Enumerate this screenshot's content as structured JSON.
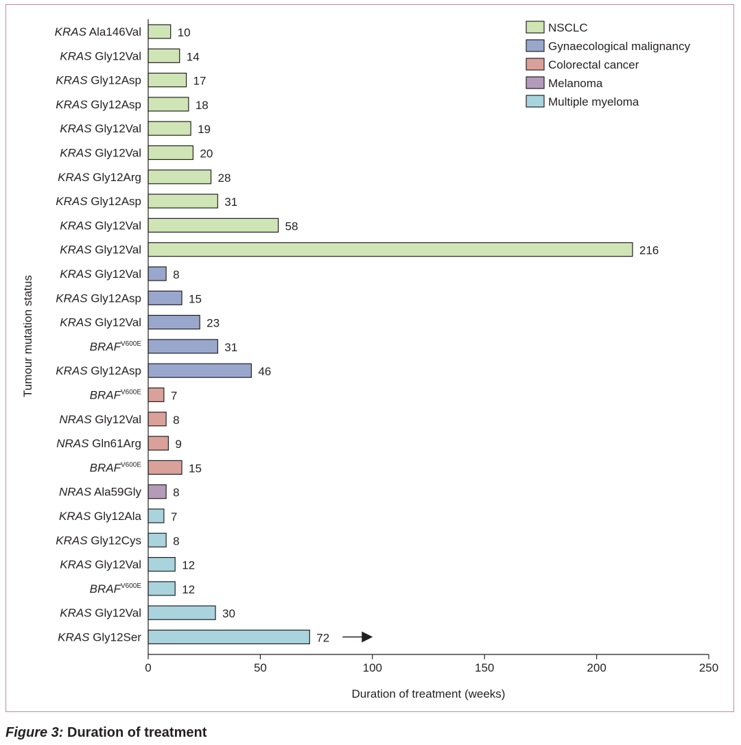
{
  "caption": {
    "figure_number": "Figure 3:",
    "title": "Duration of treatment"
  },
  "colors": {
    "NSCLC": "#cfe5b5",
    "Gynaecological malignancy": "#9aa7cc",
    "Colorectal cancer": "#d9a19a",
    "Melanoma": "#b49bb9",
    "Multiple myeloma": "#a9d3dd",
    "bar_stroke": "#231f20"
  },
  "chart_data": {
    "type": "bar",
    "orientation": "horizontal",
    "xlabel": "Duration of treatment (weeks)",
    "ylabel": "Tumour mutation status",
    "xlim": [
      0,
      250
    ],
    "xticks": [
      0,
      50,
      100,
      150,
      200,
      250
    ],
    "grid": false,
    "legend_position": "top-right",
    "legend": [
      "NSCLC",
      "Gynaecological malignancy",
      "Colorectal cancer",
      "Melanoma",
      "Multiple myeloma"
    ],
    "bars": [
      {
        "gene": "KRAS",
        "mutation": "Ala146Val",
        "value": 10,
        "group": "NSCLC"
      },
      {
        "gene": "KRAS",
        "mutation": "Gly12Val",
        "value": 14,
        "group": "NSCLC"
      },
      {
        "gene": "KRAS",
        "mutation": "Gly12Asp",
        "value": 17,
        "group": "NSCLC"
      },
      {
        "gene": "KRAS",
        "mutation": "Gly12Asp",
        "value": 18,
        "group": "NSCLC"
      },
      {
        "gene": "KRAS",
        "mutation": "Gly12Val",
        "value": 19,
        "group": "NSCLC"
      },
      {
        "gene": "KRAS",
        "mutation": "Gly12Val",
        "value": 20,
        "group": "NSCLC"
      },
      {
        "gene": "KRAS",
        "mutation": "Gly12Arg",
        "value": 28,
        "group": "NSCLC"
      },
      {
        "gene": "KRAS",
        "mutation": "Gly12Asp",
        "value": 31,
        "group": "NSCLC"
      },
      {
        "gene": "KRAS",
        "mutation": "Gly12Val",
        "value": 58,
        "group": "NSCLC"
      },
      {
        "gene": "KRAS",
        "mutation": "Gly12Val",
        "value": 216,
        "group": "NSCLC"
      },
      {
        "gene": "KRAS",
        "mutation": "Gly12Val",
        "value": 8,
        "group": "Gynaecological malignancy"
      },
      {
        "gene": "KRAS",
        "mutation": "Gly12Asp",
        "value": 15,
        "group": "Gynaecological malignancy"
      },
      {
        "gene": "KRAS",
        "mutation": "Gly12Val",
        "value": 23,
        "group": "Gynaecological malignancy"
      },
      {
        "gene": "BRAF",
        "mutation": "V600E",
        "value": 31,
        "group": "Gynaecological malignancy"
      },
      {
        "gene": "KRAS",
        "mutation": "Gly12Asp",
        "value": 46,
        "group": "Gynaecological malignancy"
      },
      {
        "gene": "BRAF",
        "mutation": "V600E",
        "value": 7,
        "group": "Colorectal cancer"
      },
      {
        "gene": "NRAS",
        "mutation": "Gly12Val",
        "value": 8,
        "group": "Colorectal cancer"
      },
      {
        "gene": "NRAS",
        "mutation": "Gln61Arg",
        "value": 9,
        "group": "Colorectal cancer"
      },
      {
        "gene": "BRAF",
        "mutation": "V600E",
        "value": 15,
        "group": "Colorectal cancer"
      },
      {
        "gene": "NRAS",
        "mutation": "Ala59Gly",
        "value": 8,
        "group": "Melanoma"
      },
      {
        "gene": "KRAS",
        "mutation": "Gly12Ala",
        "value": 7,
        "group": "Multiple myeloma"
      },
      {
        "gene": "KRAS",
        "mutation": "Gly12Cys",
        "value": 8,
        "group": "Multiple myeloma"
      },
      {
        "gene": "KRAS",
        "mutation": "Gly12Val",
        "value": 12,
        "group": "Multiple myeloma"
      },
      {
        "gene": "BRAF",
        "mutation": "V600E",
        "value": 12,
        "group": "Multiple myeloma"
      },
      {
        "gene": "KRAS",
        "mutation": "Gly12Val",
        "value": 30,
        "group": "Multiple myeloma"
      },
      {
        "gene": "KRAS",
        "mutation": "Gly12Ser",
        "value": 72,
        "group": "Multiple myeloma",
        "ongoing_arrow": true
      }
    ]
  }
}
